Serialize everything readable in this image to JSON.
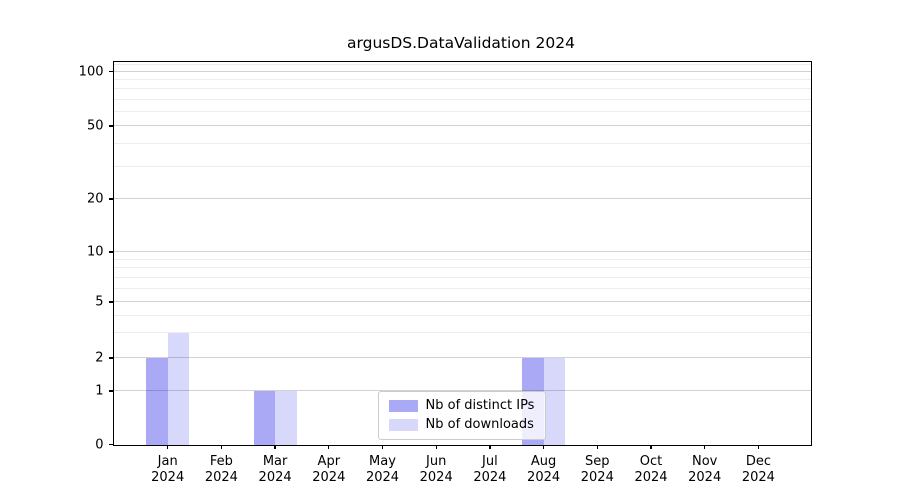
{
  "chart_data": {
    "type": "bar",
    "title": "argusDS.DataValidation 2024",
    "x_tick_labels": [
      {
        "month": "Jan",
        "year": "2024"
      },
      {
        "month": "Feb",
        "year": "2024"
      },
      {
        "month": "Mar",
        "year": "2024"
      },
      {
        "month": "Apr",
        "year": "2024"
      },
      {
        "month": "May",
        "year": "2024"
      },
      {
        "month": "Jun",
        "year": "2024"
      },
      {
        "month": "Jul",
        "year": "2024"
      },
      {
        "month": "Aug",
        "year": "2024"
      },
      {
        "month": "Sep",
        "year": "2024"
      },
      {
        "month": "Oct",
        "year": "2024"
      },
      {
        "month": "Nov",
        "year": "2024"
      },
      {
        "month": "Dec",
        "year": "2024"
      }
    ],
    "series": [
      {
        "name": "Nb of distinct IPs",
        "color": "rgba(10,10,230,0.35)",
        "values": [
          2,
          0,
          1,
          0,
          0,
          0,
          0,
          2,
          0,
          0,
          0,
          0
        ]
      },
      {
        "name": "Nb of downloads",
        "color": "rgba(10,10,230,0.16)",
        "values": [
          3,
          0,
          1,
          0,
          0,
          0,
          0,
          2,
          0,
          0,
          0,
          0
        ]
      }
    ],
    "y_ticks": [
      0,
      1,
      2,
      5,
      10,
      20,
      50,
      100
    ],
    "y_minor_gridlines": [
      3,
      4,
      6,
      7,
      8,
      9,
      30,
      40,
      60,
      70,
      80,
      90,
      110
    ],
    "y_scale": "symlog",
    "ylim": [
      0,
      115
    ],
    "grid": "horizontal major and minor",
    "legend_position": "lower center"
  }
}
